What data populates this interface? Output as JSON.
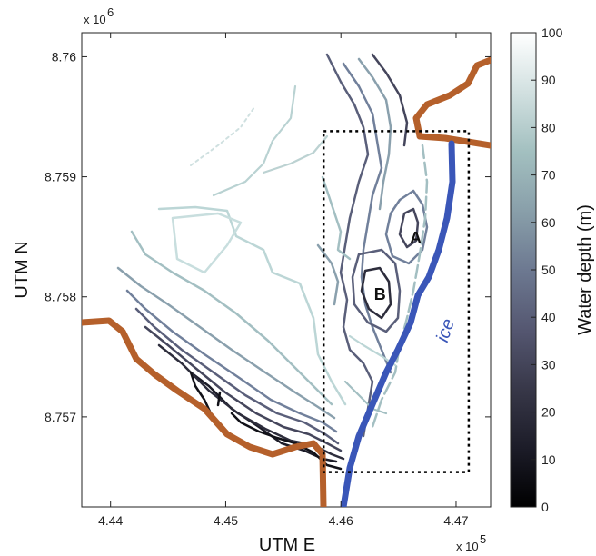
{
  "chart_data": {
    "type": "contour",
    "title": "",
    "xlabel": "UTM E",
    "ylabel": "UTM N",
    "x_multiplier": "x 10",
    "x_multiplier_exp": "5",
    "y_multiplier": "x 10",
    "y_multiplier_exp": "6",
    "xlim": [
      4.4375,
      4.473
    ],
    "ylim": [
      8.75625,
      8.7602
    ],
    "x_ticks": [
      4.44,
      4.45,
      4.46,
      4.47
    ],
    "x_tick_labels": [
      "4.44",
      "4.45",
      "4.46",
      "4.47"
    ],
    "y_ticks": [
      8.757,
      8.758,
      8.759,
      8.76
    ],
    "y_tick_labels": [
      "8.757",
      "8.758",
      "8.759",
      "8.76"
    ],
    "colorbar": {
      "label": "Water depth (m)",
      "range": [
        0,
        100
      ],
      "ticks": [
        0,
        10,
        20,
        30,
        40,
        50,
        60,
        70,
        80,
        90,
        100
      ],
      "tick_labels": [
        "0",
        "10",
        "20",
        "30",
        "40",
        "50",
        "60",
        "70",
        "80",
        "90",
        "100"
      ],
      "colormap": "bone"
    },
    "contour_levels": [
      10,
      20,
      30,
      40,
      50,
      60,
      70,
      80
    ],
    "annotations": [
      {
        "text": "A",
        "x": 4.4665,
        "y": 8.75849
      },
      {
        "text": "B",
        "x": 4.4634,
        "y": 8.75802
      },
      {
        "text": "ice",
        "x": 4.4691,
        "y": 8.75772
      }
    ],
    "study_box": {
      "x": [
        4.4585,
        4.4711
      ],
      "y": [
        8.75654,
        8.75938
      ],
      "style": "dotted",
      "color": "#000000"
    },
    "coastline_color": "#b5602b",
    "ice_edge_color": "#3a56b8"
  }
}
